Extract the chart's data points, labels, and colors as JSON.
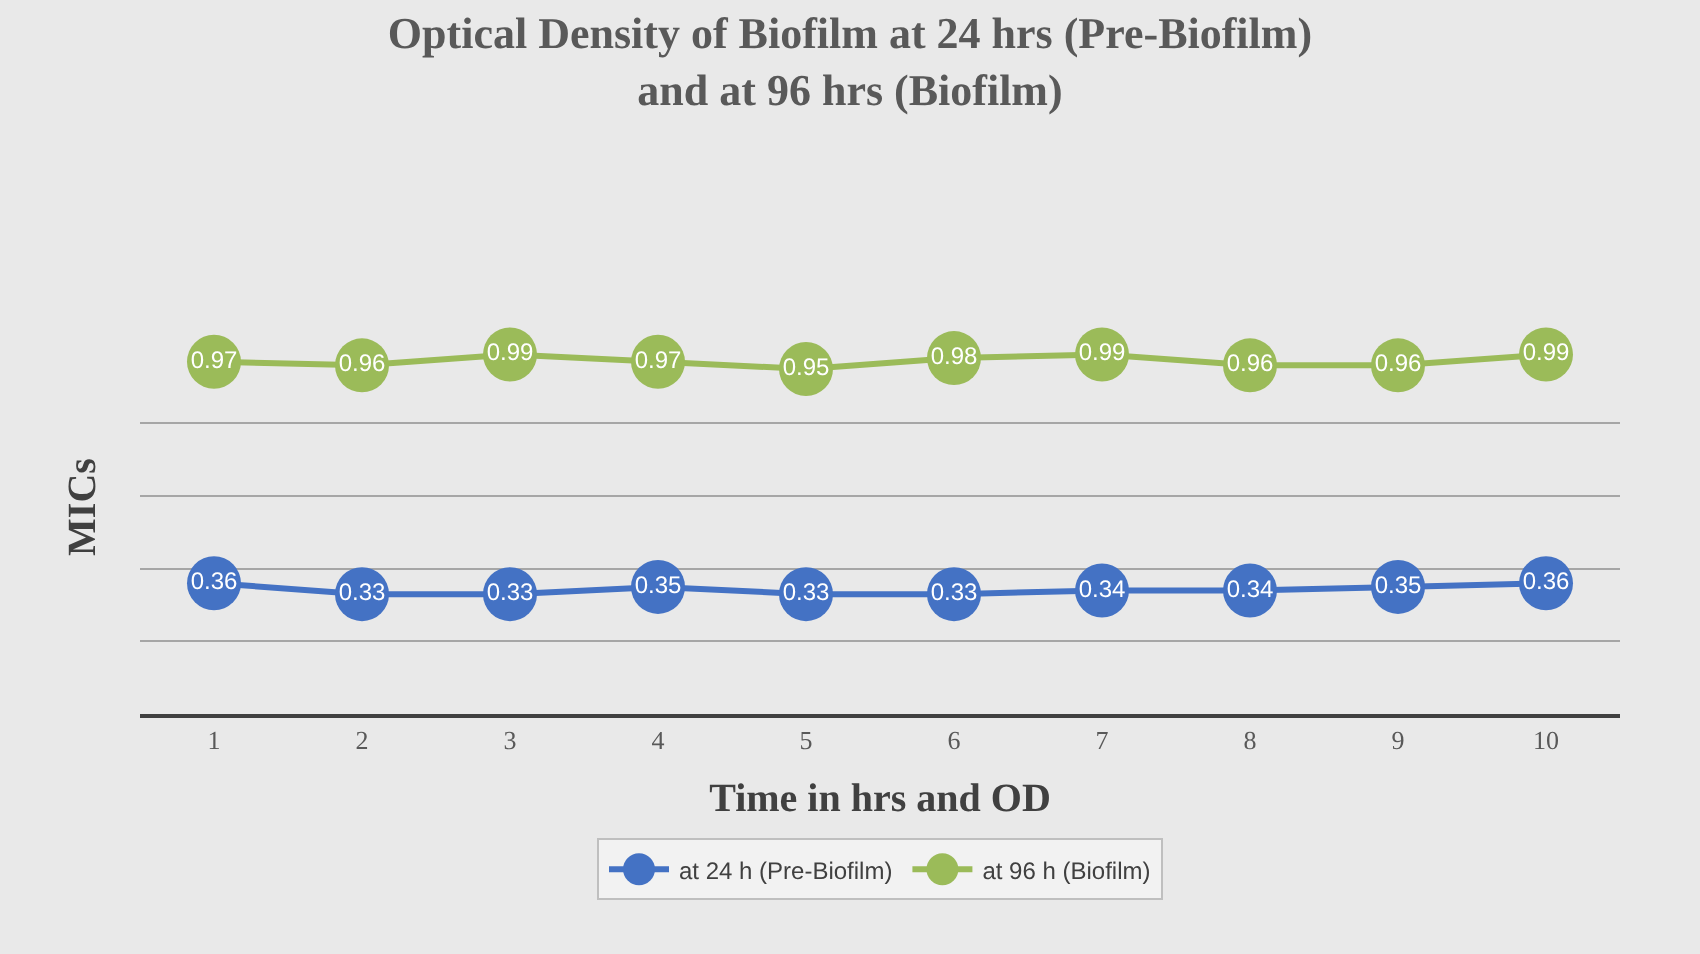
{
  "chart_data": {
    "type": "line",
    "title": "Optical Density of Biofilm at 24 hrs (Pre-Biofilm)\nand at 96 hrs (Biofilm)",
    "xlabel": "Time in hrs and OD",
    "ylabel": "MICs",
    "categories": [
      "1",
      "2",
      "3",
      "4",
      "5",
      "6",
      "7",
      "8",
      "9",
      "10"
    ],
    "series": [
      {
        "name": "at 24 h (Pre-Biofilm)",
        "color": "#4472c4",
        "values": [
          0.36,
          0.33,
          0.33,
          0.35,
          0.33,
          0.33,
          0.34,
          0.34,
          0.35,
          0.36
        ]
      },
      {
        "name": "at 96 h (Biofilm)",
        "color": "#9bbb59",
        "values": [
          0.97,
          0.96,
          0.99,
          0.97,
          0.95,
          0.98,
          0.99,
          0.96,
          0.96,
          0.99
        ]
      }
    ],
    "yticks": [
      {
        "value": 0,
        "label": null
      },
      {
        "value": 0.2,
        "label": null
      },
      {
        "value": 0.4,
        "label": null
      },
      {
        "value": 0.6,
        "label": null
      },
      {
        "value": 0.8,
        "label": null
      }
    ],
    "tick_labels": "x",
    "grid": "y",
    "legend": "bottom",
    "marker": "circle",
    "line_style": "solid",
    "data_labels": true
  }
}
